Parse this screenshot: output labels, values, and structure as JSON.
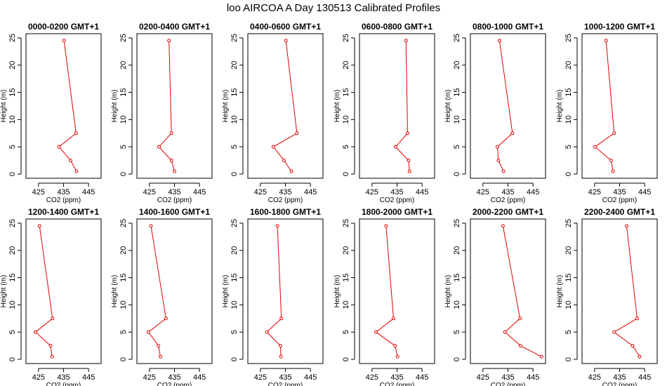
{
  "title": "loo AIRCOA A  Day 130513  Calibrated Profiles",
  "colors": {
    "series": "#e00000",
    "axis": "#000000"
  },
  "chart_data": {
    "type": "line",
    "xlabel": "CO2 (ppm)",
    "ylabel": "Height (m)",
    "xlim": [
      420,
      450
    ],
    "ylim": [
      0,
      25
    ],
    "xticks": [
      425,
      435,
      445
    ],
    "yticks": [
      0,
      5,
      10,
      15,
      20,
      25
    ],
    "heights": [
      24.5,
      7.5,
      5.0,
      2.5,
      0.5
    ],
    "panels": [
      {
        "title": "0000-0200 GMT+1",
        "co2": [
          435.2,
          440.0,
          433.2,
          437.8,
          440.2
        ]
      },
      {
        "title": "0200-0400 GMT+1",
        "co2": [
          432.8,
          433.8,
          428.8,
          433.8,
          435.0
        ]
      },
      {
        "title": "0400-0600 GMT+1",
        "co2": [
          435.2,
          439.6,
          430.2,
          434.4,
          437.4
        ]
      },
      {
        "title": "0600-0800 GMT+1",
        "co2": [
          438.6,
          439.2,
          434.4,
          439.6,
          440.0
        ]
      },
      {
        "title": "0800-1000 GMT+1",
        "co2": [
          431.6,
          436.8,
          430.8,
          431.2,
          433.2
        ]
      },
      {
        "title": "1000-1200 GMT+1",
        "co2": [
          429.6,
          432.8,
          425.2,
          431.6,
          432.4
        ]
      },
      {
        "title": "1200-1400 GMT+1",
        "co2": [
          425.4,
          430.6,
          423.8,
          429.8,
          430.4
        ]
      },
      {
        "title": "1400-1600 GMT+1",
        "co2": [
          425.6,
          431.6,
          424.6,
          428.6,
          429.4
        ]
      },
      {
        "title": "1600-1800 GMT+1",
        "co2": [
          431.8,
          433.4,
          427.6,
          433.0,
          433.2
        ]
      },
      {
        "title": "1800-2000 GMT+1",
        "co2": [
          430.6,
          433.6,
          426.6,
          434.2,
          435.2
        ]
      },
      {
        "title": "2000-2200 GMT+1",
        "co2": [
          433.0,
          439.8,
          433.8,
          440.0,
          448.4
        ]
      },
      {
        "title": "2200-2400 GMT+1",
        "co2": [
          437.8,
          442.0,
          432.8,
          440.2,
          443.0
        ]
      }
    ]
  }
}
